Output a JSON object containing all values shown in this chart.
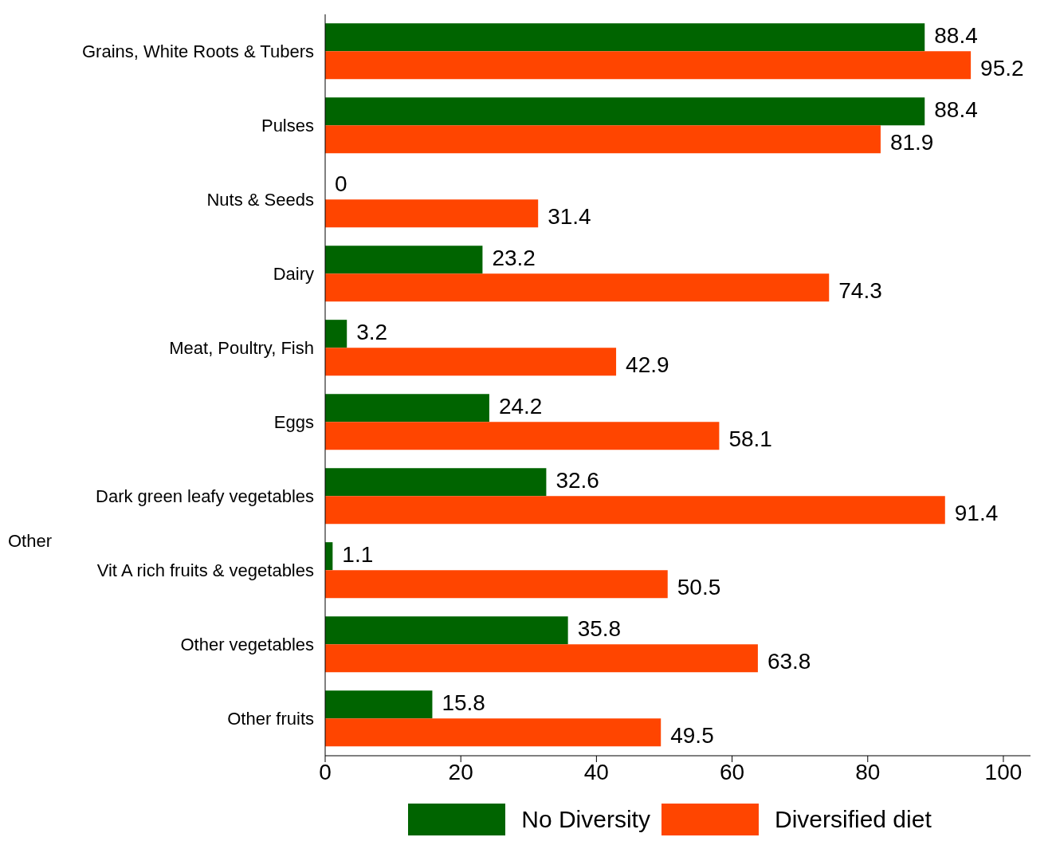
{
  "chart_data": {
    "type": "bar",
    "orientation": "horizontal",
    "categories": [
      "Grains, White Roots & Tubers",
      "Pulses",
      "Nuts & Seeds",
      "Dairy",
      "Meat, Poultry, Fish",
      "Eggs",
      "Dark green leafy vegetables",
      "Vit A rich fruits & vegetables",
      "Other vegetables",
      "Other fruits"
    ],
    "series": [
      {
        "name": "No Diversity",
        "color": "#006400",
        "values": [
          88.4,
          88.4,
          0,
          23.2,
          3.2,
          24.2,
          32.6,
          1.1,
          35.8,
          15.8
        ]
      },
      {
        "name": "Diversified diet",
        "color": "#ff4500",
        "values": [
          95.2,
          81.9,
          31.4,
          74.3,
          42.9,
          58.1,
          91.4,
          50.5,
          63.8,
          49.5
        ]
      }
    ],
    "xlim": [
      0,
      104
    ],
    "xticks": [
      0,
      20,
      40,
      60,
      80,
      100
    ],
    "data_labels": true,
    "grid": false,
    "legend": "bottom",
    "annotations": [
      "Other"
    ]
  }
}
